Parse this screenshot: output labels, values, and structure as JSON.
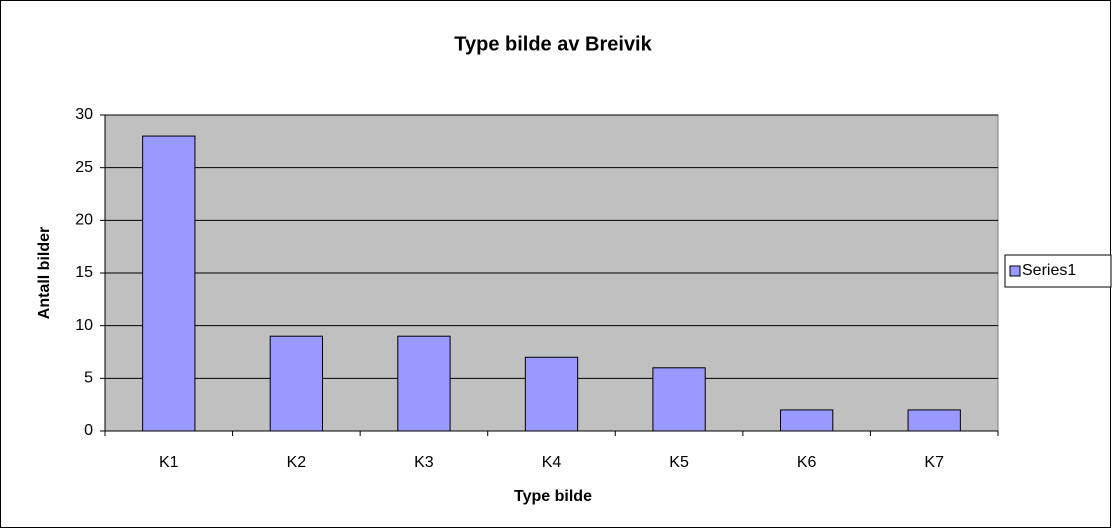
{
  "chart_data": {
    "type": "bar",
    "title": "Type bilde av Breivik",
    "x_label": "Type bilde",
    "y_label": "Antall bilder",
    "categories": [
      "K1",
      "K2",
      "K3",
      "K4",
      "K5",
      "K6",
      "K7"
    ],
    "series": [
      {
        "name": "Series1",
        "color": "#9999ff",
        "values": [
          28,
          9,
          9,
          7,
          6,
          2,
          2
        ]
      }
    ],
    "ylim": [
      0,
      30
    ],
    "yticks": [
      0,
      5,
      10,
      15,
      20,
      25,
      30
    ],
    "grid": true,
    "legend": "right"
  }
}
